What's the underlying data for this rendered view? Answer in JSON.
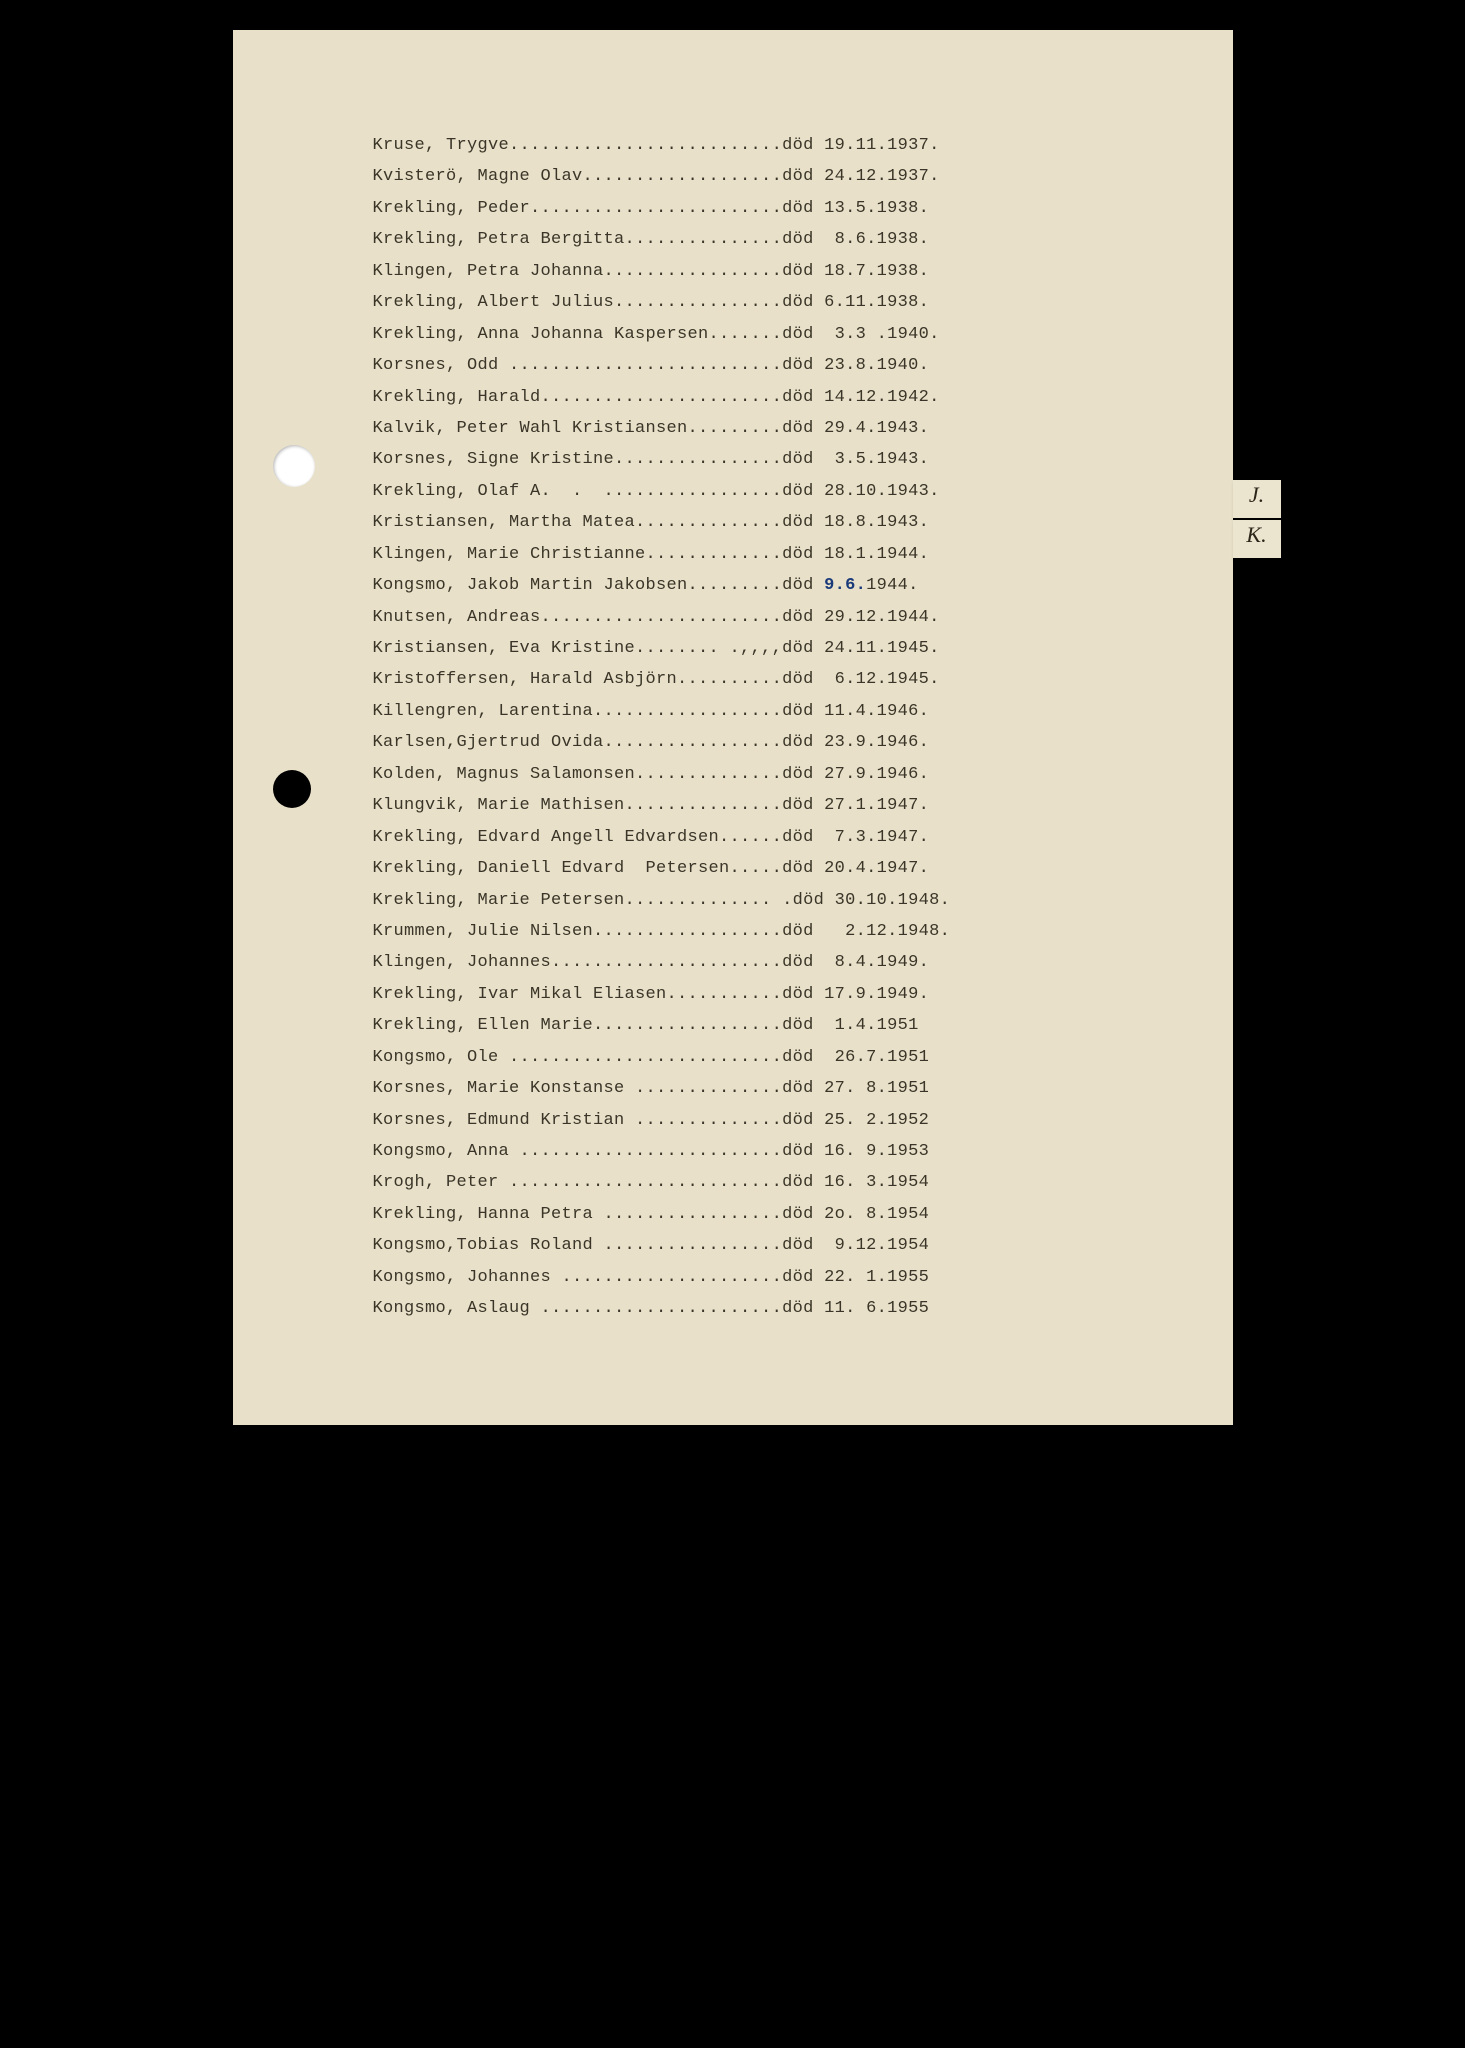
{
  "document": {
    "background_color": "#e8e0c8",
    "text_color": "#3a3528",
    "font_family": "Courier New",
    "font_size_pt": 13,
    "line_height": 1.85,
    "tab_labels": [
      "J.",
      "K."
    ],
    "annotation_color": "#1a3a7a",
    "entries": [
      {
        "name": "Kruse, Trygve",
        "date": "19.11.1937."
      },
      {
        "name": "Kvisterö, Magne Olav",
        "date": "24.12.1937."
      },
      {
        "name": "Krekling, Peder",
        "date": "13.5.1938."
      },
      {
        "name": "Krekling, Petra Bergitta",
        "date": " 8.6.1938."
      },
      {
        "name": "Klingen, Petra Johanna",
        "date": "18.7.1938."
      },
      {
        "name": "Krekling, Albert Julius",
        "date": "6.11.1938."
      },
      {
        "name": "Krekling, Anna Johanna Kaspersen",
        "date": " 3.3 .1940."
      },
      {
        "name": "Korsnes, Odd ",
        "date": "23.8.1940."
      },
      {
        "name": "Krekling, Harald",
        "date": "14.12.1942."
      },
      {
        "name": "Kalvik, Peter Wahl Kristiansen",
        "date": "29.4.1943."
      },
      {
        "name": "Korsnes, Signe Kristine",
        "date": " 3.5.1943."
      },
      {
        "name": "Krekling, Olaf A.  .  .",
        "date": "28.10.1943."
      },
      {
        "name": "Kristiansen, Martha Matea",
        "date": "18.8.1943."
      },
      {
        "name": "Klingen, Marie Christianne",
        "date": "18.1.1944."
      },
      {
        "name": "Kongsmo, Jakob Martin Jakobsen",
        "date": "1944.",
        "annotation": "9.6."
      },
      {
        "name": "Knutsen, Andreas",
        "date": "29.12.1944."
      },
      {
        "name": "Kristiansen, Eva Kristine",
        "dots_suffix": "........ .,,,,",
        "date": "24.11.1945."
      },
      {
        "name": "Kristoffersen, Harald Asbjörn",
        "date": " 6.12.1945."
      },
      {
        "name": "Killengren, Larentina",
        "date": "11.4.1946."
      },
      {
        "name": "Karlsen,Gjertrud Ovida",
        "date": "23.9.1946."
      },
      {
        "name": "Kolden, Magnus Salamonsen",
        "date": "27.9.1946."
      },
      {
        "name": "Klungvik, Marie Mathisen",
        "date": "27.1.1947."
      },
      {
        "name": "Krekling, Edvard Angell Edvardsen",
        "date": " 7.3.1947."
      },
      {
        "name": "Krekling, Daniell Edvard  Petersen",
        "date": "20.4.1947."
      },
      {
        "name": "Krekling, Marie Petersen",
        "dots_suffix": ".............. .",
        "date": "30.10.1948."
      },
      {
        "name": "Krummen, Julie Nilsen",
        "date": "  2.12.1948."
      },
      {
        "name": "Klingen, Johannes",
        "date": " 8.4.1949."
      },
      {
        "name": "Krekling, Ivar Mikal Eliasen",
        "date": "17.9.1949."
      },
      {
        "name": "Krekling, Ellen Marie",
        "date": " 1.4.1951"
      },
      {
        "name": "Kongsmo, Ole ",
        "date": " 26.7.1951"
      },
      {
        "name": "Korsnes, Marie Konstanse ",
        "date": "27. 8.1951"
      },
      {
        "name": "Korsnes, Edmund Kristian ",
        "date": "25. 2.1952"
      },
      {
        "name": "Kongsmo, Anna ",
        "date": "16. 9.1953"
      },
      {
        "name": "Krogh, Peter ",
        "date": "16. 3.1954"
      },
      {
        "name": "Krekling, Hanna Petra ",
        "date": "2o. 8.1954"
      },
      {
        "name": "Kongsmo,Tobias Roland ",
        "date": " 9.12.1954"
      },
      {
        "name": "Kongsmo, Johannes ",
        "date": "22. 1.1955"
      },
      {
        "name": "Kongsmo, Aslaug ",
        "date": "11. 6.1955"
      }
    ],
    "status_word": "död",
    "dots_column": 39
  }
}
